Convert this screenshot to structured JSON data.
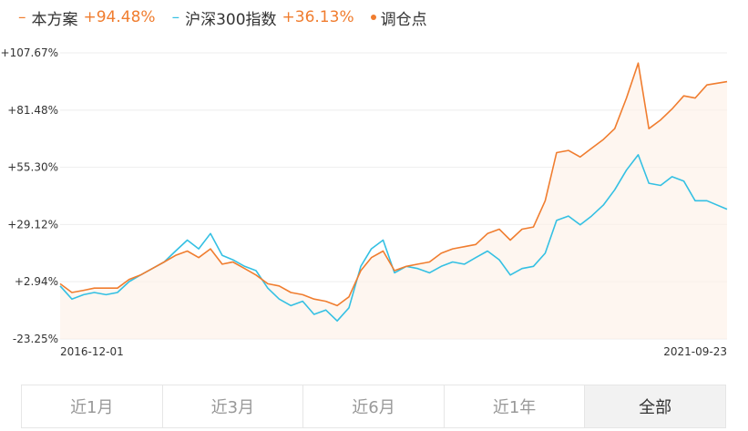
{
  "legend": [
    {
      "label": "本方案",
      "value": "+94.48%",
      "color": "#f07d2f",
      "marker": "dash"
    },
    {
      "label": "沪深300指数",
      "value": "+36.13%",
      "color": "#34c0e3",
      "marker": "dash"
    },
    {
      "label": "调仓点",
      "value": "",
      "color": "#f07d2f",
      "marker": "dot"
    }
  ],
  "tabs": [
    {
      "label": "近1月",
      "active": false
    },
    {
      "label": "近3月",
      "active": false
    },
    {
      "label": "近6月",
      "active": false
    },
    {
      "label": "近1年",
      "active": false
    },
    {
      "label": "全部",
      "active": true
    }
  ],
  "chart_data": {
    "type": "line",
    "title": "",
    "xlabel": "",
    "ylabel": "",
    "x_range": [
      "2016-12-01",
      "2021-09-23"
    ],
    "xtick_labels": [
      "2016-12-01",
      "2021-09-23"
    ],
    "ytick_labels": [
      "+107.67%",
      "+81.48%",
      "+55.30%",
      "+29.12%",
      "+2.94%",
      "-23.25%"
    ],
    "ytick_values": [
      107.67,
      81.48,
      55.3,
      29.12,
      2.94,
      -23.25
    ],
    "ylim": [
      -23.25,
      107.67
    ],
    "grid": true,
    "legend_position": "top-left",
    "series": [
      {
        "name": "本方案",
        "color": "#f07d2f",
        "area_fill": true,
        "points": [
          [
            "2016-12-01",
            2
          ],
          [
            "2017-01-01",
            -2
          ],
          [
            "2017-02-01",
            -1
          ],
          [
            "2017-03-01",
            0
          ],
          [
            "2017-04-01",
            0
          ],
          [
            "2017-05-01",
            0
          ],
          [
            "2017-06-01",
            4
          ],
          [
            "2017-07-01",
            6
          ],
          [
            "2017-08-01",
            9
          ],
          [
            "2017-09-01",
            12
          ],
          [
            "2017-10-01",
            15
          ],
          [
            "2017-11-01",
            17
          ],
          [
            "2017-12-01",
            14
          ],
          [
            "2018-01-01",
            18
          ],
          [
            "2018-02-01",
            11
          ],
          [
            "2018-03-01",
            12
          ],
          [
            "2018-04-01",
            9
          ],
          [
            "2018-05-01",
            6
          ],
          [
            "2018-06-01",
            2
          ],
          [
            "2018-07-01",
            1
          ],
          [
            "2018-08-01",
            -2
          ],
          [
            "2018-09-01",
            -3
          ],
          [
            "2018-10-01",
            -5
          ],
          [
            "2018-11-01",
            -6
          ],
          [
            "2018-12-01",
            -8
          ],
          [
            "2019-01-01",
            -4
          ],
          [
            "2019-02-01",
            8
          ],
          [
            "2019-03-01",
            14
          ],
          [
            "2019-04-01",
            17
          ],
          [
            "2019-05-01",
            8
          ],
          [
            "2019-06-01",
            10
          ],
          [
            "2019-07-01",
            11
          ],
          [
            "2019-08-01",
            12
          ],
          [
            "2019-09-01",
            16
          ],
          [
            "2019-10-01",
            18
          ],
          [
            "2019-11-01",
            19
          ],
          [
            "2019-12-01",
            20
          ],
          [
            "2020-01-01",
            25
          ],
          [
            "2020-02-01",
            27
          ],
          [
            "2020-03-01",
            22
          ],
          [
            "2020-04-01",
            27
          ],
          [
            "2020-05-01",
            28
          ],
          [
            "2020-06-01",
            40
          ],
          [
            "2020-07-01",
            62
          ],
          [
            "2020-08-01",
            63
          ],
          [
            "2020-09-01",
            60
          ],
          [
            "2020-10-01",
            64
          ],
          [
            "2020-11-01",
            68
          ],
          [
            "2020-12-01",
            73
          ],
          [
            "2021-01-01",
            87
          ],
          [
            "2021-02-01",
            103
          ],
          [
            "2021-03-01",
            73
          ],
          [
            "2021-04-01",
            77
          ],
          [
            "2021-05-01",
            82
          ],
          [
            "2021-06-01",
            88
          ],
          [
            "2021-07-01",
            87
          ],
          [
            "2021-08-01",
            93
          ],
          [
            "2021-09-23",
            94.48
          ]
        ]
      },
      {
        "name": "沪深300指数",
        "color": "#34c0e3",
        "area_fill": false,
        "points": [
          [
            "2016-12-01",
            1
          ],
          [
            "2017-01-01",
            -5
          ],
          [
            "2017-02-01",
            -3
          ],
          [
            "2017-03-01",
            -2
          ],
          [
            "2017-04-01",
            -3
          ],
          [
            "2017-05-01",
            -2
          ],
          [
            "2017-06-01",
            3
          ],
          [
            "2017-07-01",
            6
          ],
          [
            "2017-08-01",
            9
          ],
          [
            "2017-09-01",
            12
          ],
          [
            "2017-10-01",
            17
          ],
          [
            "2017-11-01",
            22
          ],
          [
            "2017-12-01",
            18
          ],
          [
            "2018-01-01",
            25
          ],
          [
            "2018-02-01",
            15
          ],
          [
            "2018-03-01",
            13
          ],
          [
            "2018-04-01",
            10
          ],
          [
            "2018-05-01",
            8
          ],
          [
            "2018-06-01",
            0
          ],
          [
            "2018-07-01",
            -5
          ],
          [
            "2018-08-01",
            -8
          ],
          [
            "2018-09-01",
            -6
          ],
          [
            "2018-10-01",
            -12
          ],
          [
            "2018-11-01",
            -10
          ],
          [
            "2018-12-01",
            -15
          ],
          [
            "2019-01-01",
            -9
          ],
          [
            "2019-02-01",
            10
          ],
          [
            "2019-03-01",
            18
          ],
          [
            "2019-04-01",
            22
          ],
          [
            "2019-05-01",
            7
          ],
          [
            "2019-06-01",
            10
          ],
          [
            "2019-07-01",
            9
          ],
          [
            "2019-08-01",
            7
          ],
          [
            "2019-09-01",
            10
          ],
          [
            "2019-10-01",
            12
          ],
          [
            "2019-11-01",
            11
          ],
          [
            "2019-12-01",
            14
          ],
          [
            "2020-01-01",
            17
          ],
          [
            "2020-02-01",
            13
          ],
          [
            "2020-03-01",
            6
          ],
          [
            "2020-04-01",
            9
          ],
          [
            "2020-05-01",
            10
          ],
          [
            "2020-06-01",
            16
          ],
          [
            "2020-07-01",
            31
          ],
          [
            "2020-08-01",
            33
          ],
          [
            "2020-09-01",
            29
          ],
          [
            "2020-10-01",
            33
          ],
          [
            "2020-11-01",
            38
          ],
          [
            "2020-12-01",
            45
          ],
          [
            "2021-01-01",
            54
          ],
          [
            "2021-02-01",
            61
          ],
          [
            "2021-03-01",
            48
          ],
          [
            "2021-04-01",
            47
          ],
          [
            "2021-05-01",
            51
          ],
          [
            "2021-06-01",
            49
          ],
          [
            "2021-07-01",
            40
          ],
          [
            "2021-08-01",
            40
          ],
          [
            "2021-09-23",
            36.13
          ]
        ]
      }
    ]
  }
}
